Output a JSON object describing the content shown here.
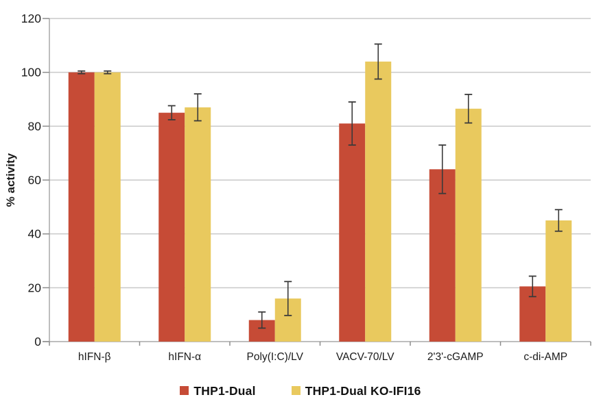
{
  "chart_data": {
    "type": "bar",
    "title": "",
    "xlabel": "",
    "ylabel": "% activity",
    "ylim": [
      0,
      120
    ],
    "ytick_step": 20,
    "ytick_labels": [
      "0",
      "20",
      "40",
      "60",
      "80",
      "100",
      "120"
    ],
    "grid": true,
    "legend_position": "bottom-center",
    "categories": [
      "hIFN-β",
      "hIFN-α",
      "Poly(I:C)/LV",
      "VACV-70/LV",
      "2'3'-cGAMP",
      "c-di-AMP"
    ],
    "series": [
      {
        "name": "THP1-Dual",
        "color": "#C64B36",
        "values": [
          100,
          85,
          8,
          81,
          64,
          20.5
        ],
        "errors": [
          0.5,
          2.6,
          3,
          8,
          9,
          3.8
        ]
      },
      {
        "name": "THP1-Dual KO-IFI16",
        "color": "#E9C95E",
        "values": [
          100,
          87,
          16,
          104,
          86.5,
          45
        ],
        "errors": [
          0.5,
          5,
          6.3,
          6.5,
          5.3,
          4
        ]
      }
    ]
  },
  "colors": {
    "grid_line": "#C9C9C9",
    "axis_line": "#A9A9A9",
    "tick_mark": "#8C8C8C",
    "error_bar": "#3A3A3A",
    "tick_text": "#1A1A1A",
    "label_text": "#1A1A1A"
  }
}
